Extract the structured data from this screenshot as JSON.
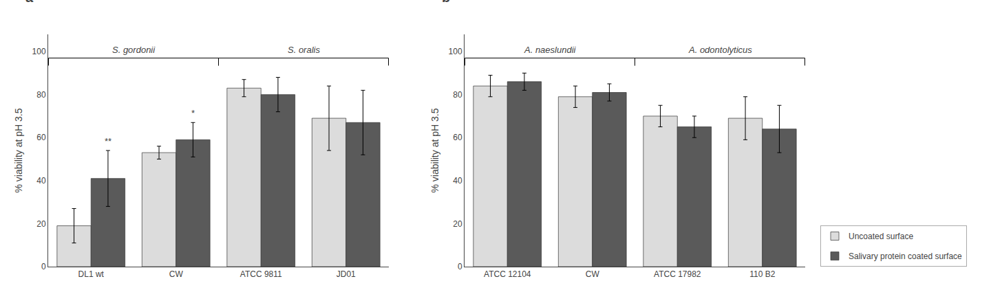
{
  "chart_data": [
    {
      "type": "bar",
      "title": "a",
      "categories": [
        "DL1 wt",
        "CW",
        "ATCC 9811",
        "JD01"
      ],
      "series": [
        {
          "name": "Uncoated surface",
          "color": "#dcdcdc",
          "values": [
            19,
            53,
            83,
            69
          ],
          "errors": [
            8,
            3,
            4,
            15
          ]
        },
        {
          "name": "Salivary protein coated surface",
          "color": "#5a5a5a",
          "values": [
            41,
            59,
            80,
            67
          ],
          "errors": [
            13,
            8,
            8,
            15
          ]
        }
      ],
      "annotations": [
        {
          "text": "**",
          "category": "DL1 wt",
          "series": "Salivary protein coated surface"
        },
        {
          "text": "*",
          "category": "CW",
          "series": "Salivary protein coated surface"
        }
      ],
      "brackets": [
        {
          "text": "S. gordonii",
          "categories": [
            "DL1 wt",
            "CW"
          ],
          "y": 97
        },
        {
          "text": "S. oralis",
          "categories": [
            "ATCC 9811",
            "JD01"
          ],
          "y": 97
        }
      ],
      "ylabel": "% viability at pH 3.5",
      "ylim": [
        0,
        108
      ],
      "yticks": [
        0,
        20,
        40,
        60,
        80,
        100
      ],
      "grid": false
    },
    {
      "type": "bar",
      "title": "b",
      "categories": [
        "ATCC 12104",
        "CW",
        "ATCC 17982",
        "110 B2"
      ],
      "series": [
        {
          "name": "Uncoated surface",
          "color": "#dcdcdc",
          "values": [
            84,
            79,
            70,
            69
          ],
          "errors": [
            5,
            5,
            5,
            10
          ]
        },
        {
          "name": "Salivary protein coated surface",
          "color": "#5a5a5a",
          "values": [
            86,
            81,
            65,
            64
          ],
          "errors": [
            4,
            4,
            5,
            11
          ]
        }
      ],
      "brackets": [
        {
          "text": "A. naeslundii",
          "categories": [
            "ATCC 12104",
            "CW"
          ],
          "y": 97
        },
        {
          "text": "A. odontolyticus",
          "categories": [
            "ATCC 17982",
            "110 B2"
          ],
          "y": 97
        }
      ],
      "ylabel": "% viability at pH 3.5",
      "ylim": [
        0,
        108
      ],
      "yticks": [
        0,
        20,
        40,
        60,
        80,
        100
      ],
      "grid": false,
      "legend": "lower right"
    }
  ]
}
